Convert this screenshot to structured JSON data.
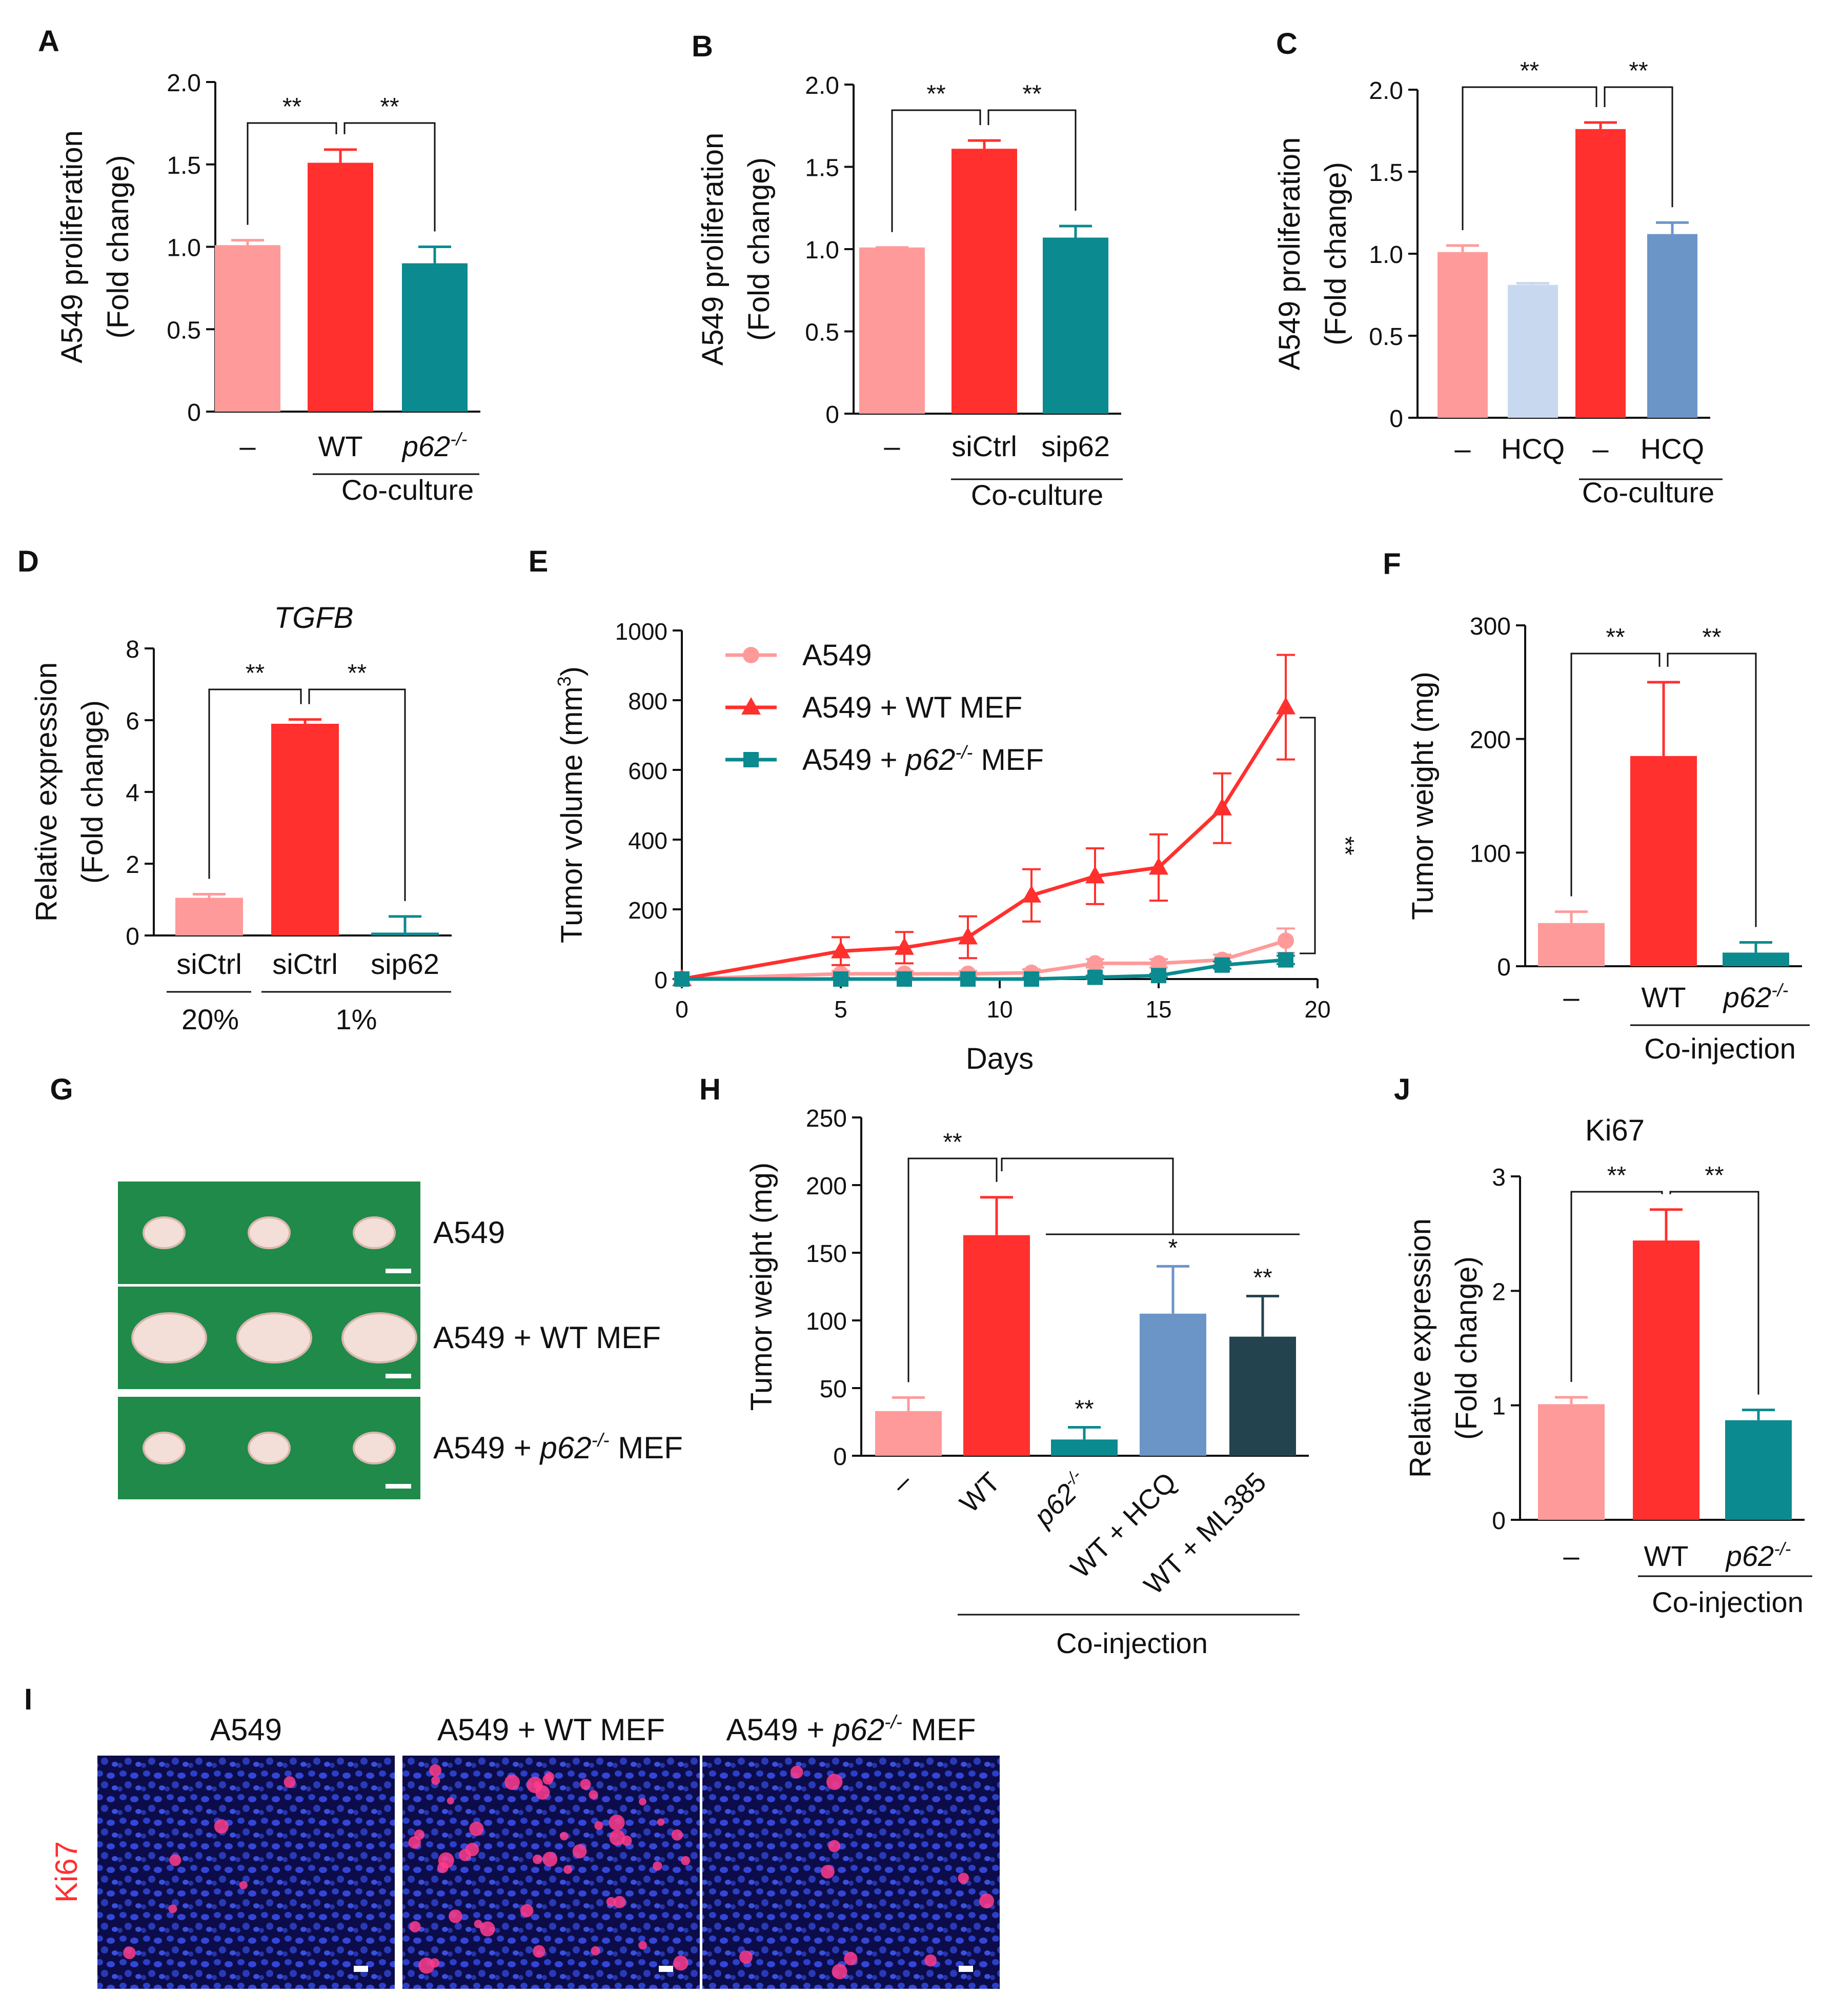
{
  "colors": {
    "pink": "#ff9a9a",
    "red": "#ff302d",
    "teal": "#0b8a8f",
    "lightblue": "#c8d8ef",
    "steelblue": "#6b95c7",
    "darkslate": "#23434f",
    "green": "#1f8a49",
    "axis": "#111111"
  },
  "chart_data": [
    {
      "panel": "A",
      "type": "bar",
      "ylabel": [
        "A549 proliferation",
        "(Fold change)"
      ],
      "ylim": [
        0,
        2.0
      ],
      "ticks": [
        0,
        0.5,
        1.0,
        1.5,
        2.0
      ],
      "tick_labels": [
        "0",
        "0.5",
        "1.0",
        "1.5",
        "2.0"
      ],
      "categories": [
        "–",
        "WT",
        "p62-/-"
      ],
      "values": [
        1.01,
        1.51,
        0.9
      ],
      "errors": [
        0.03,
        0.08,
        0.1
      ],
      "bar_colors": [
        "pink",
        "red",
        "teal"
      ],
      "group_label": "Co-culture",
      "significance": [
        {
          "from": 0,
          "to": 1,
          "label": "**"
        },
        {
          "from": 1,
          "to": 2,
          "label": "**"
        }
      ]
    },
    {
      "panel": "B",
      "type": "bar",
      "ylabel": [
        "A549 proliferation",
        "(Fold change)"
      ],
      "ylim": [
        0,
        2.0
      ],
      "ticks": [
        0,
        0.5,
        1.0,
        1.5,
        2.0
      ],
      "tick_labels": [
        "0",
        "0.5",
        "1.0",
        "1.5",
        "2.0"
      ],
      "categories": [
        "–",
        "siCtrl",
        "sip62"
      ],
      "values": [
        1.01,
        1.61,
        1.07
      ],
      "errors": [
        0.0,
        0.05,
        0.07
      ],
      "bar_colors": [
        "pink",
        "red",
        "teal"
      ],
      "group_label": "Co-culture",
      "significance": [
        {
          "from": 0,
          "to": 1,
          "label": "**"
        },
        {
          "from": 1,
          "to": 2,
          "label": "**"
        }
      ]
    },
    {
      "panel": "C",
      "type": "bar",
      "ylabel": [
        "A549 proliferation",
        "(Fold change)"
      ],
      "ylim": [
        0,
        2.0
      ],
      "ticks": [
        0,
        0.5,
        1.0,
        1.5,
        2.0
      ],
      "tick_labels": [
        "0",
        "0.5",
        "1.0",
        "1.5",
        "2.0"
      ],
      "categories": [
        "–",
        "HCQ",
        "–",
        "HCQ"
      ],
      "values": [
        1.01,
        0.81,
        1.76,
        1.12
      ],
      "errors": [
        0.04,
        0.01,
        0.04,
        0.07
      ],
      "bar_colors": [
        "pink",
        "lightblue",
        "red",
        "steelblue"
      ],
      "group_label": "Co-culture",
      "significance": [
        {
          "from": 0,
          "to": 2,
          "label": "**"
        },
        {
          "from": 2,
          "to": 3,
          "label": "**"
        }
      ]
    },
    {
      "panel": "D",
      "type": "bar",
      "title": "TGFB",
      "ylabel": [
        "Relative expression",
        "(Fold change)"
      ],
      "ylim": [
        0,
        8
      ],
      "ticks": [
        0,
        2,
        4,
        6,
        8
      ],
      "tick_labels": [
        "0",
        "2",
        "4",
        "6",
        "8"
      ],
      "categories": [
        "siCtrl",
        "siCtrl",
        "sip62"
      ],
      "values": [
        1.05,
        5.9,
        0.08
      ],
      "errors": [
        0.1,
        0.12,
        0.45
      ],
      "bar_colors": [
        "pink",
        "red",
        "teal"
      ],
      "sub_labels": [
        "20%",
        "1%"
      ],
      "significance": [
        {
          "from": 0,
          "to": 1,
          "label": "**"
        },
        {
          "from": 1,
          "to": 2,
          "label": "**"
        }
      ]
    },
    {
      "panel": "E",
      "type": "line",
      "xlabel": "Days",
      "ylabel": "Tumor volume (mm3)",
      "xlim": [
        0,
        20
      ],
      "ylim": [
        0,
        1000
      ],
      "xticks": [
        0,
        5,
        10,
        15,
        20
      ],
      "yticks": [
        0,
        200,
        400,
        600,
        800,
        1000
      ],
      "significance": "**",
      "series": [
        {
          "name": "A549",
          "color": "pink",
          "marker": "circle",
          "x": [
            0,
            5,
            7,
            9,
            11,
            13,
            15,
            17,
            19
          ],
          "y": [
            0,
            15,
            15,
            15,
            18,
            45,
            45,
            55,
            110
          ],
          "err": [
            0,
            8,
            8,
            8,
            10,
            12,
            12,
            15,
            35
          ]
        },
        {
          "name": "A549 + WT MEF",
          "color": "red",
          "marker": "triangle",
          "x": [
            0,
            5,
            7,
            9,
            11,
            13,
            15,
            17,
            19
          ],
          "y": [
            0,
            80,
            90,
            120,
            240,
            295,
            320,
            490,
            780
          ],
          "err": [
            0,
            40,
            45,
            60,
            75,
            80,
            95,
            100,
            150
          ]
        },
        {
          "name": "A549 + p62-/- MEF",
          "color": "teal",
          "marker": "square",
          "x": [
            0,
            5,
            7,
            9,
            11,
            13,
            15,
            17,
            19
          ],
          "y": [
            0,
            0,
            0,
            0,
            0,
            5,
            10,
            40,
            55
          ],
          "err": [
            0,
            3,
            3,
            3,
            3,
            5,
            5,
            10,
            12
          ]
        }
      ]
    },
    {
      "panel": "F",
      "type": "bar",
      "ylabel": [
        "Tumor weight (mg)"
      ],
      "ylim": [
        0,
        300
      ],
      "ticks": [
        0,
        100,
        200,
        300
      ],
      "tick_labels": [
        "0",
        "100",
        "200",
        "300"
      ],
      "categories": [
        "–",
        "WT",
        "p62-/-"
      ],
      "values": [
        38,
        185,
        12
      ],
      "errors": [
        10,
        65,
        9
      ],
      "bar_colors": [
        "pink",
        "red",
        "teal"
      ],
      "group_label": "Co-injection",
      "significance": [
        {
          "from": 0,
          "to": 1,
          "label": "**"
        },
        {
          "from": 1,
          "to": 2,
          "label": "**"
        }
      ]
    },
    {
      "panel": "H",
      "type": "bar",
      "ylabel": [
        "Tumor weight (mg)"
      ],
      "ylim": [
        0,
        250
      ],
      "ticks": [
        0,
        50,
        100,
        150,
        200,
        250
      ],
      "tick_labels": [
        "0",
        "50",
        "100",
        "150",
        "200",
        "250"
      ],
      "categories": [
        "–",
        "WT",
        "p62-/-",
        "WT + HCQ",
        "WT + ML385"
      ],
      "values": [
        33,
        163,
        12,
        105,
        88
      ],
      "errors": [
        10,
        28,
        9,
        35,
        30
      ],
      "bar_colors": [
        "pink",
        "red",
        "teal",
        "steelblue",
        "darkslate"
      ],
      "group_label": "Co-injection",
      "significance": [
        {
          "from": 0,
          "to": 1,
          "label": "**"
        }
      ],
      "bar_stars": [
        "",
        "",
        "**",
        "*",
        "**"
      ]
    },
    {
      "panel": "J",
      "type": "bar",
      "title": "Ki67",
      "ylabel": [
        "Relative expression",
        "(Fold change)"
      ],
      "ylim": [
        0,
        3
      ],
      "ticks": [
        0,
        1,
        2,
        3
      ],
      "tick_labels": [
        "0",
        "1",
        "2",
        "3"
      ],
      "categories": [
        "–",
        "WT",
        "p62-/-"
      ],
      "values": [
        1.01,
        2.44,
        0.87
      ],
      "errors": [
        0.06,
        0.27,
        0.09
      ],
      "bar_colors": [
        "pink",
        "red",
        "teal"
      ],
      "group_label": "Co-injection",
      "significance": [
        {
          "from": 0,
          "to": 1,
          "label": "**"
        },
        {
          "from": 1,
          "to": 2,
          "label": "**"
        }
      ]
    }
  ],
  "panel_G": {
    "letter": "G",
    "rows": [
      {
        "label": "A549",
        "tumors": 3,
        "size": "small"
      },
      {
        "label": "A549 + WT MEF",
        "tumors": 3,
        "size": "large"
      },
      {
        "label": "A549 + p62-/- MEF",
        "tumors": 3,
        "size": "small"
      }
    ]
  },
  "panel_I": {
    "letter": "I",
    "stain": "Ki67",
    "images": [
      {
        "title": "A549",
        "positive_cells": 6
      },
      {
        "title": "A549 + WT MEF",
        "positive_cells": 45
      },
      {
        "title": "A549 + p62-/- MEF",
        "positive_cells": 10
      }
    ]
  }
}
